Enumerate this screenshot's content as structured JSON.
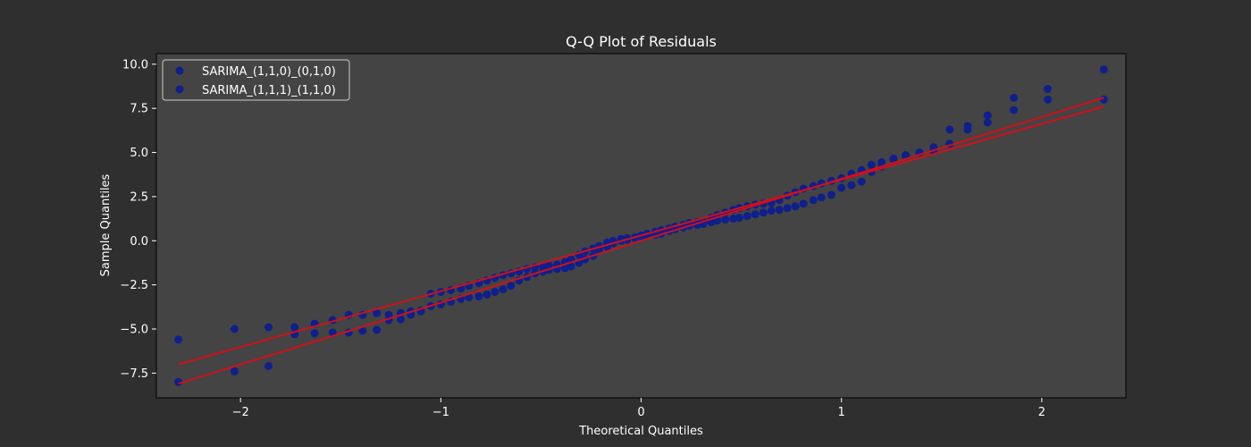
{
  "chart_data": {
    "type": "scatter",
    "title": "Q-Q Plot of Residuals",
    "xlabel": "Theoretical Quantiles",
    "ylabel": "Sample Quantiles",
    "xlim": [
      -2.42,
      2.42
    ],
    "ylim": [
      -8.9,
      10.6
    ],
    "xticks": [
      -2,
      -1,
      0,
      1,
      2
    ],
    "xtick_labels": [
      "−2",
      "−1",
      "0",
      "1",
      "2"
    ],
    "yticks": [
      -7.5,
      -5.0,
      -2.5,
      0.0,
      2.5,
      5.0,
      7.5,
      10.0
    ],
    "ytick_labels": [
      "−7.5",
      "−5.0",
      "−2.5",
      "0.0",
      "2.5",
      "5.0",
      "7.5",
      "10.0"
    ],
    "grid": false,
    "legend_position": "top-left",
    "colors": {
      "figure_bg": "#2f2f2f",
      "axes_bg": "#444444",
      "marker": "#0f1f8c",
      "fit_line": "#d0101b",
      "text": "#ffffff",
      "legend_bg": "#444444",
      "legend_border": "#cccccc"
    },
    "series": [
      {
        "name": "SARIMA_(1,1,0)_(0,1,0)",
        "points": [
          [
            -2.31,
            -5.6
          ],
          [
            -2.03,
            -5.0
          ],
          [
            -1.86,
            -4.9
          ],
          [
            -1.73,
            -4.9
          ],
          [
            -1.63,
            -4.7
          ],
          [
            -1.54,
            -4.5
          ],
          [
            -1.46,
            -4.2
          ],
          [
            -1.39,
            -4.2
          ],
          [
            -1.32,
            -4.1
          ],
          [
            -1.26,
            -4.2
          ],
          [
            -1.2,
            -4.1
          ],
          [
            -1.15,
            -4.0
          ],
          [
            -1.1,
            -4.0
          ],
          [
            -1.05,
            -3.0
          ],
          [
            -1.0,
            -2.9
          ],
          [
            -0.95,
            -2.8
          ],
          [
            -0.9,
            -2.7
          ],
          [
            -0.86,
            -2.55
          ],
          [
            -0.81,
            -2.4
          ],
          [
            -0.77,
            -2.25
          ],
          [
            -0.73,
            -2.1
          ],
          [
            -0.69,
            -1.95
          ],
          [
            -0.65,
            -1.85
          ],
          [
            -0.61,
            -1.75
          ],
          [
            -0.57,
            -1.6
          ],
          [
            -0.53,
            -1.5
          ],
          [
            -0.49,
            -1.45
          ],
          [
            -0.46,
            -1.4
          ],
          [
            -0.42,
            -1.35
          ],
          [
            -0.38,
            -1.2
          ],
          [
            -0.35,
            -1.05
          ],
          [
            -0.31,
            -0.8
          ],
          [
            -0.28,
            -0.6
          ],
          [
            -0.24,
            -0.45
          ],
          [
            -0.21,
            -0.3
          ],
          [
            -0.17,
            -0.1
          ],
          [
            -0.14,
            0.0
          ],
          [
            -0.1,
            0.1
          ],
          [
            -0.07,
            0.15
          ],
          [
            -0.03,
            0.2
          ],
          [
            0.0,
            0.3
          ],
          [
            0.03,
            0.4
          ],
          [
            0.07,
            0.5
          ],
          [
            0.1,
            0.6
          ],
          [
            0.14,
            0.7
          ],
          [
            0.17,
            0.8
          ],
          [
            0.21,
            0.9
          ],
          [
            0.24,
            1.0
          ],
          [
            0.28,
            1.05
          ],
          [
            0.31,
            1.1
          ],
          [
            0.35,
            1.3
          ],
          [
            0.38,
            1.45
          ],
          [
            0.42,
            1.6
          ],
          [
            0.46,
            1.75
          ],
          [
            0.49,
            1.85
          ],
          [
            0.53,
            1.95
          ],
          [
            0.57,
            2.05
          ],
          [
            0.61,
            2.1
          ],
          [
            0.65,
            2.15
          ],
          [
            0.69,
            2.3
          ],
          [
            0.73,
            2.55
          ],
          [
            0.77,
            2.75
          ],
          [
            0.81,
            2.95
          ],
          [
            0.86,
            3.1
          ],
          [
            0.9,
            3.25
          ],
          [
            0.95,
            3.4
          ],
          [
            1.0,
            3.55
          ],
          [
            1.05,
            3.8
          ],
          [
            1.1,
            4.0
          ],
          [
            1.15,
            4.3
          ],
          [
            1.2,
            4.45
          ],
          [
            1.26,
            4.65
          ],
          [
            1.32,
            4.85
          ],
          [
            1.39,
            5.0
          ],
          [
            1.46,
            5.3
          ],
          [
            1.54,
            5.5
          ],
          [
            1.63,
            6.5
          ],
          [
            1.73,
            7.1
          ],
          [
            1.86,
            8.1
          ],
          [
            2.03,
            8.6
          ],
          [
            2.31,
            9.7
          ]
        ]
      },
      {
        "name": "SARIMA_(1,1,1)_(1,1,0)",
        "points": [
          [
            -2.31,
            -8.0
          ],
          [
            -2.03,
            -7.4
          ],
          [
            -1.86,
            -7.1
          ],
          [
            -1.73,
            -5.3
          ],
          [
            -1.63,
            -5.25
          ],
          [
            -1.54,
            -5.2
          ],
          [
            -1.46,
            -5.2
          ],
          [
            -1.39,
            -5.1
          ],
          [
            -1.32,
            -5.05
          ],
          [
            -1.26,
            -4.5
          ],
          [
            -1.2,
            -4.45
          ],
          [
            -1.15,
            -4.2
          ],
          [
            -1.1,
            -3.95
          ],
          [
            -1.05,
            -3.7
          ],
          [
            -1.0,
            -3.6
          ],
          [
            -0.95,
            -3.45
          ],
          [
            -0.9,
            -3.3
          ],
          [
            -0.86,
            -3.2
          ],
          [
            -0.81,
            -3.15
          ],
          [
            -0.77,
            -3.05
          ],
          [
            -0.73,
            -2.9
          ],
          [
            -0.69,
            -2.75
          ],
          [
            -0.65,
            -2.55
          ],
          [
            -0.61,
            -2.25
          ],
          [
            -0.57,
            -2.05
          ],
          [
            -0.53,
            -1.85
          ],
          [
            -0.49,
            -1.75
          ],
          [
            -0.46,
            -1.65
          ],
          [
            -0.42,
            -1.6
          ],
          [
            -0.38,
            -1.55
          ],
          [
            -0.35,
            -1.45
          ],
          [
            -0.31,
            -1.25
          ],
          [
            -0.28,
            -1.05
          ],
          [
            -0.24,
            -0.85
          ],
          [
            -0.21,
            -0.55
          ],
          [
            -0.17,
            -0.35
          ],
          [
            -0.14,
            -0.15
          ],
          [
            -0.1,
            0.0
          ],
          [
            -0.07,
            0.05
          ],
          [
            -0.03,
            0.15
          ],
          [
            0.0,
            0.25
          ],
          [
            0.03,
            0.3
          ],
          [
            0.07,
            0.35
          ],
          [
            0.1,
            0.4
          ],
          [
            0.14,
            0.55
          ],
          [
            0.17,
            0.65
          ],
          [
            0.21,
            0.75
          ],
          [
            0.24,
            0.85
          ],
          [
            0.28,
            0.9
          ],
          [
            0.31,
            0.95
          ],
          [
            0.35,
            1.05
          ],
          [
            0.38,
            1.15
          ],
          [
            0.42,
            1.2
          ],
          [
            0.46,
            1.25
          ],
          [
            0.49,
            1.3
          ],
          [
            0.53,
            1.4
          ],
          [
            0.57,
            1.5
          ],
          [
            0.61,
            1.6
          ],
          [
            0.65,
            1.7
          ],
          [
            0.69,
            1.75
          ],
          [
            0.73,
            1.85
          ],
          [
            0.77,
            1.95
          ],
          [
            0.81,
            2.1
          ],
          [
            0.86,
            2.3
          ],
          [
            0.9,
            2.45
          ],
          [
            0.95,
            2.6
          ],
          [
            1.0,
            3.0
          ],
          [
            1.05,
            3.15
          ],
          [
            1.1,
            3.35
          ],
          [
            1.15,
            3.9
          ],
          [
            1.2,
            4.2
          ],
          [
            1.26,
            4.6
          ],
          [
            1.32,
            4.8
          ],
          [
            1.39,
            5.0
          ],
          [
            1.46,
            5.1
          ],
          [
            1.54,
            6.3
          ],
          [
            1.63,
            6.3
          ],
          [
            1.73,
            6.7
          ],
          [
            1.86,
            7.4
          ],
          [
            2.03,
            8.0
          ],
          [
            2.31,
            8.0
          ]
        ]
      }
    ],
    "fit_lines": [
      {
        "x": [
          -2.31,
          2.31
        ],
        "y": [
          -7.0,
          7.6
        ]
      },
      {
        "x": [
          -2.31,
          2.31
        ],
        "y": [
          -8.1,
          8.1
        ]
      }
    ]
  }
}
